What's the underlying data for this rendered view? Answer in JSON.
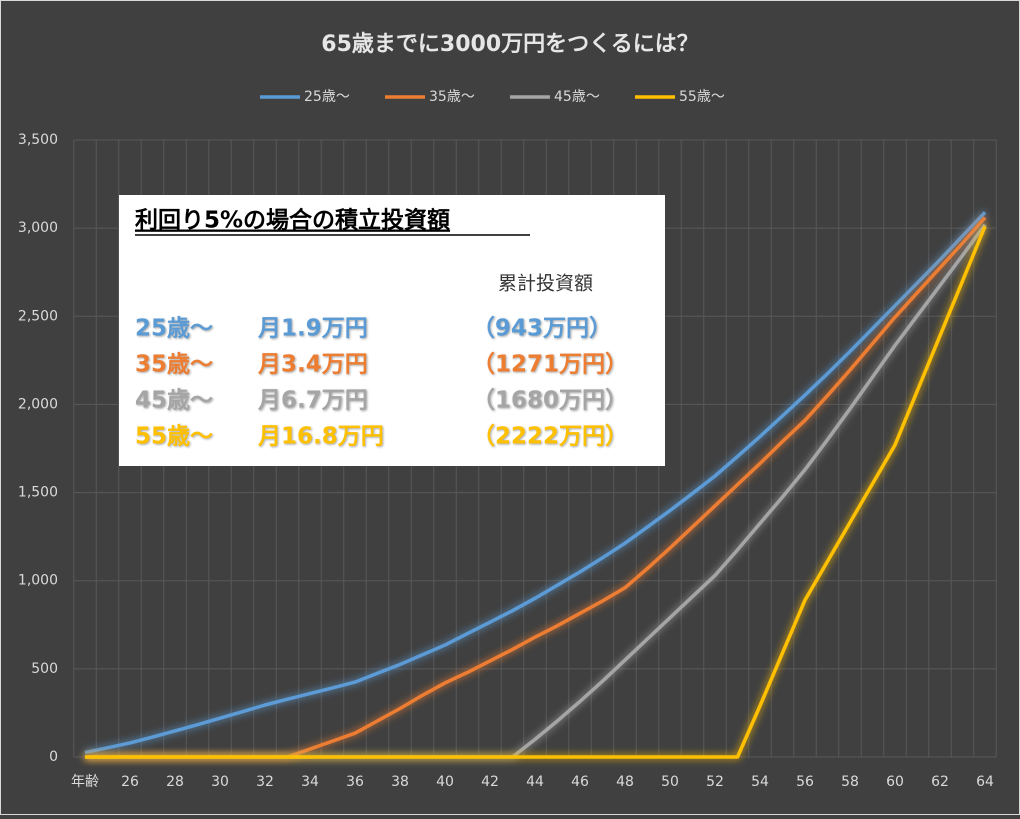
{
  "chart_data": {
    "type": "line",
    "title": "65歳までに3000万円をつくるには？",
    "categories": [
      "年齢",
      null,
      "26",
      null,
      "28",
      null,
      "30",
      null,
      "32",
      null,
      "34",
      null,
      "36",
      null,
      "38",
      null,
      "40",
      null,
      "42",
      null,
      "44",
      null,
      "46",
      null,
      "48",
      null,
      "50",
      null,
      "52",
      null,
      "54",
      null,
      "56",
      null,
      "58",
      null,
      "60",
      null,
      "62",
      null,
      "64"
    ],
    "series": [
      {
        "name": "25歳～",
        "color": "#5b9bd5",
        "values": [
          25,
          52,
          80,
          113,
          148,
          183,
          220,
          257,
          295,
          328,
          360,
          392,
          425,
          475,
          525,
          580,
          635,
          700,
          765,
          830,
          900,
          975,
          1050,
          1130,
          1213,
          1305,
          1398,
          1495,
          1594,
          1705,
          1818,
          1935,
          2053,
          2175,
          2300,
          2430,
          2560,
          2690,
          2820,
          2955,
          3090
        ]
      },
      {
        "name": "35歳～",
        "color": "#ed7d31",
        "values": [
          0,
          0,
          0,
          0,
          0,
          0,
          0,
          0,
          0,
          0,
          45,
          90,
          135,
          205,
          275,
          350,
          420,
          480,
          545,
          610,
          680,
          745,
          815,
          885,
          960,
          1070,
          1185,
          1305,
          1425,
          1545,
          1665,
          1790,
          1910,
          2050,
          2195,
          2345,
          2495,
          2635,
          2775,
          2915,
          3060
        ]
      },
      {
        "name": "45歳～",
        "color": "#a5a5a5",
        "values": [
          0,
          0,
          0,
          0,
          0,
          0,
          0,
          0,
          0,
          0,
          0,
          0,
          0,
          0,
          0,
          0,
          0,
          0,
          0,
          0,
          100,
          205,
          315,
          430,
          550,
          670,
          790,
          910,
          1030,
          1175,
          1325,
          1475,
          1630,
          1800,
          1975,
          2155,
          2335,
          2505,
          2675,
          2845,
          3020
        ]
      },
      {
        "name": "55歳～",
        "color": "#ffc000",
        "values": [
          0,
          0,
          0,
          0,
          0,
          0,
          0,
          0,
          0,
          0,
          0,
          0,
          0,
          0,
          0,
          0,
          0,
          0,
          0,
          0,
          0,
          0,
          0,
          0,
          0,
          0,
          0,
          0,
          0,
          0,
          290,
          590,
          890,
          1110,
          1330,
          1550,
          1770,
          2080,
          2390,
          2700,
          3010
        ]
      }
    ],
    "ylim": [
      0,
      3500
    ],
    "yticks": [
      0,
      500,
      {
        "value": 1000,
        "label": "1,000"
      },
      {
        "value": 1500,
        "label": "1,500"
      },
      {
        "value": 2000,
        "label": "2,000"
      },
      {
        "value": 2500,
        "label": "2,500"
      },
      {
        "value": 3000,
        "label": "3,000"
      },
      {
        "value": 3500,
        "label": "3,500"
      }
    ],
    "grid": true,
    "legend": "top",
    "annotation": {
      "title": "利回り5%の場合の積立投資額",
      "header": "累計投資額",
      "rows": [
        [
          "25歳～",
          "月1.9万円",
          "（943万円）"
        ],
        [
          "35歳～",
          "月3.4万円",
          "（1271万円）"
        ],
        [
          "45歳～",
          "月6.7万円",
          "（1680万円）"
        ],
        [
          "55歳～",
          "月16.8万円",
          "（2222万円）"
        ]
      ]
    }
  }
}
